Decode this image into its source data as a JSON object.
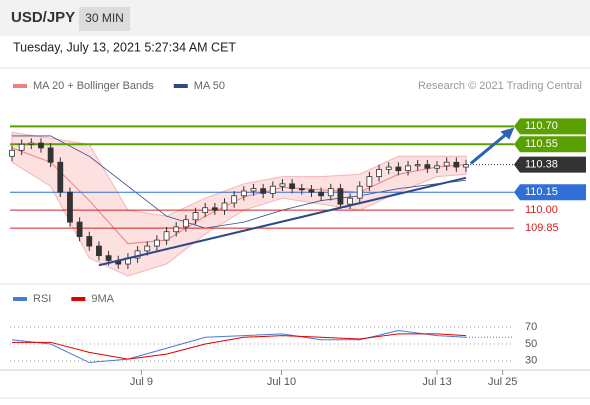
{
  "header": {
    "symbol": "USD/JPY",
    "timeframe": "30 MIN",
    "timestamp": "Tuesday, July 13, 2021 5:27:34 AM CET"
  },
  "chart_data": [
    {
      "type": "candlestick",
      "legend": [
        {
          "name": "MA 20 + Bollinger Bands",
          "color": "#f08080"
        },
        {
          "name": "MA 50",
          "color": "#2c4a8a"
        }
      ],
      "credit": "Research © 2021 Trading Central",
      "ylim": [
        109.4,
        110.92
      ],
      "xlim": [
        -0.5,
        52
      ],
      "xticks": [
        {
          "value": 13.4,
          "label": "Jul 9"
        },
        {
          "value": 27.9,
          "label": "Jul 10"
        },
        {
          "value": 44,
          "label": "Jul 13"
        },
        {
          "value": 50.8,
          "label": "Jul 25"
        }
      ],
      "open": [
        110.45,
        110.5,
        110.55,
        110.56,
        110.52,
        110.4,
        110.15,
        109.9,
        109.78,
        109.7,
        109.62,
        109.58,
        109.55,
        109.6,
        109.66,
        109.7,
        109.75,
        109.82,
        109.86,
        109.92,
        109.98,
        110.02,
        110.0,
        110.06,
        110.12,
        110.16,
        110.18,
        110.14,
        110.2,
        110.22,
        110.18,
        110.17,
        110.15,
        110.12,
        110.18,
        110.05,
        110.1,
        110.2,
        110.28,
        110.34,
        110.36,
        110.33,
        110.37,
        110.38,
        110.35,
        110.37,
        110.4,
        110.36
      ],
      "high": [
        110.54,
        110.59,
        110.6,
        110.6,
        110.56,
        110.44,
        110.19,
        109.94,
        109.82,
        109.74,
        109.66,
        109.62,
        109.64,
        109.7,
        109.74,
        109.79,
        109.86,
        109.9,
        109.96,
        110.02,
        110.06,
        110.06,
        110.1,
        110.16,
        110.2,
        110.22,
        110.22,
        110.24,
        110.26,
        110.26,
        110.22,
        110.21,
        110.19,
        110.22,
        110.22,
        110.14,
        110.24,
        110.32,
        110.38,
        110.4,
        110.4,
        110.41,
        110.42,
        110.42,
        110.41,
        110.44,
        110.44,
        110.42
      ],
      "low": [
        110.41,
        110.46,
        110.51,
        110.48,
        110.36,
        110.11,
        109.86,
        109.74,
        109.66,
        109.58,
        109.54,
        109.51,
        109.51,
        109.56,
        109.62,
        109.66,
        109.71,
        109.78,
        109.82,
        109.88,
        109.94,
        109.96,
        109.96,
        110.02,
        110.08,
        110.12,
        110.1,
        110.1,
        110.16,
        110.14,
        110.13,
        110.11,
        110.08,
        110.08,
        110.01,
        110.01,
        110.06,
        110.16,
        110.24,
        110.3,
        110.29,
        110.29,
        110.33,
        110.31,
        110.31,
        110.33,
        110.32,
        110.32
      ],
      "close": [
        110.5,
        110.55,
        110.56,
        110.52,
        110.4,
        110.15,
        109.9,
        109.78,
        109.7,
        109.62,
        109.58,
        109.55,
        109.6,
        109.66,
        109.7,
        109.75,
        109.82,
        109.86,
        109.92,
        109.98,
        110.02,
        110.0,
        110.06,
        110.12,
        110.16,
        110.18,
        110.14,
        110.2,
        110.22,
        110.18,
        110.17,
        110.15,
        110.12,
        110.18,
        110.05,
        110.1,
        110.2,
        110.28,
        110.34,
        110.36,
        110.33,
        110.37,
        110.38,
        110.35,
        110.37,
        110.4,
        110.36,
        110.38
      ],
      "overlay_x": [
        0,
        4,
        8,
        12,
        16,
        20,
        24,
        28,
        32,
        36,
        40,
        44,
        47
      ],
      "bb_upper": [
        110.65,
        110.6,
        110.55,
        110.0,
        109.95,
        110.1,
        110.22,
        110.28,
        110.28,
        110.3,
        110.45,
        110.45,
        110.45
      ],
      "bb_lower": [
        110.4,
        110.2,
        109.6,
        109.45,
        109.55,
        109.8,
        110.0,
        110.1,
        110.05,
        110.0,
        110.15,
        110.28,
        110.3
      ],
      "ma20": [
        110.52,
        110.4,
        110.08,
        109.72,
        109.75,
        109.95,
        110.11,
        110.19,
        110.17,
        110.15,
        110.3,
        110.36,
        110.38
      ],
      "ma50": [
        110.62,
        110.62,
        110.45,
        110.2,
        109.95,
        109.85,
        109.9,
        110.0,
        110.08,
        110.12,
        110.18,
        110.22,
        110.25
      ],
      "trendline": {
        "x": [
          9,
          47
        ],
        "y": [
          109.54,
          110.27
        ]
      },
      "arrow": {
        "x": [
          47.5,
          52
        ],
        "y": [
          110.39,
          110.69
        ]
      },
      "levels": [
        {
          "value": 110.7,
          "label": "110.70",
          "color": "#5aa000",
          "style": "box"
        },
        {
          "value": 110.55,
          "label": "110.55",
          "color": "#5aa000",
          "style": "box"
        },
        {
          "value": 110.38,
          "label": "110.38",
          "color": "#333333",
          "style": "current"
        },
        {
          "value": 110.15,
          "label": "110.15",
          "color": "#2f6fd6",
          "style": "box"
        },
        {
          "value": 110.0,
          "label": "110.00",
          "color": "#d82020",
          "style": "text"
        },
        {
          "value": 109.85,
          "label": "109.85",
          "color": "#d82020",
          "style": "text"
        }
      ]
    },
    {
      "type": "line",
      "legend": [
        {
          "name": "RSI",
          "color": "#4a7ad8"
        },
        {
          "name": "9MA",
          "color": "#e00000"
        }
      ],
      "ylim": [
        12,
        88
      ],
      "yticks": [
        70,
        50,
        30
      ],
      "x": [
        0,
        4,
        8,
        12,
        16,
        20,
        24,
        28,
        32,
        36,
        40,
        44,
        47
      ],
      "series": [
        {
          "name": "RSI",
          "color": "#4a7ad8",
          "values": [
            55,
            50,
            28,
            32,
            45,
            58,
            60,
            62,
            55,
            55,
            66,
            60,
            58
          ]
        },
        {
          "name": "9MA",
          "color": "#e00000",
          "values": [
            52,
            52,
            40,
            32,
            38,
            50,
            58,
            60,
            58,
            56,
            62,
            62,
            60
          ]
        }
      ]
    }
  ]
}
